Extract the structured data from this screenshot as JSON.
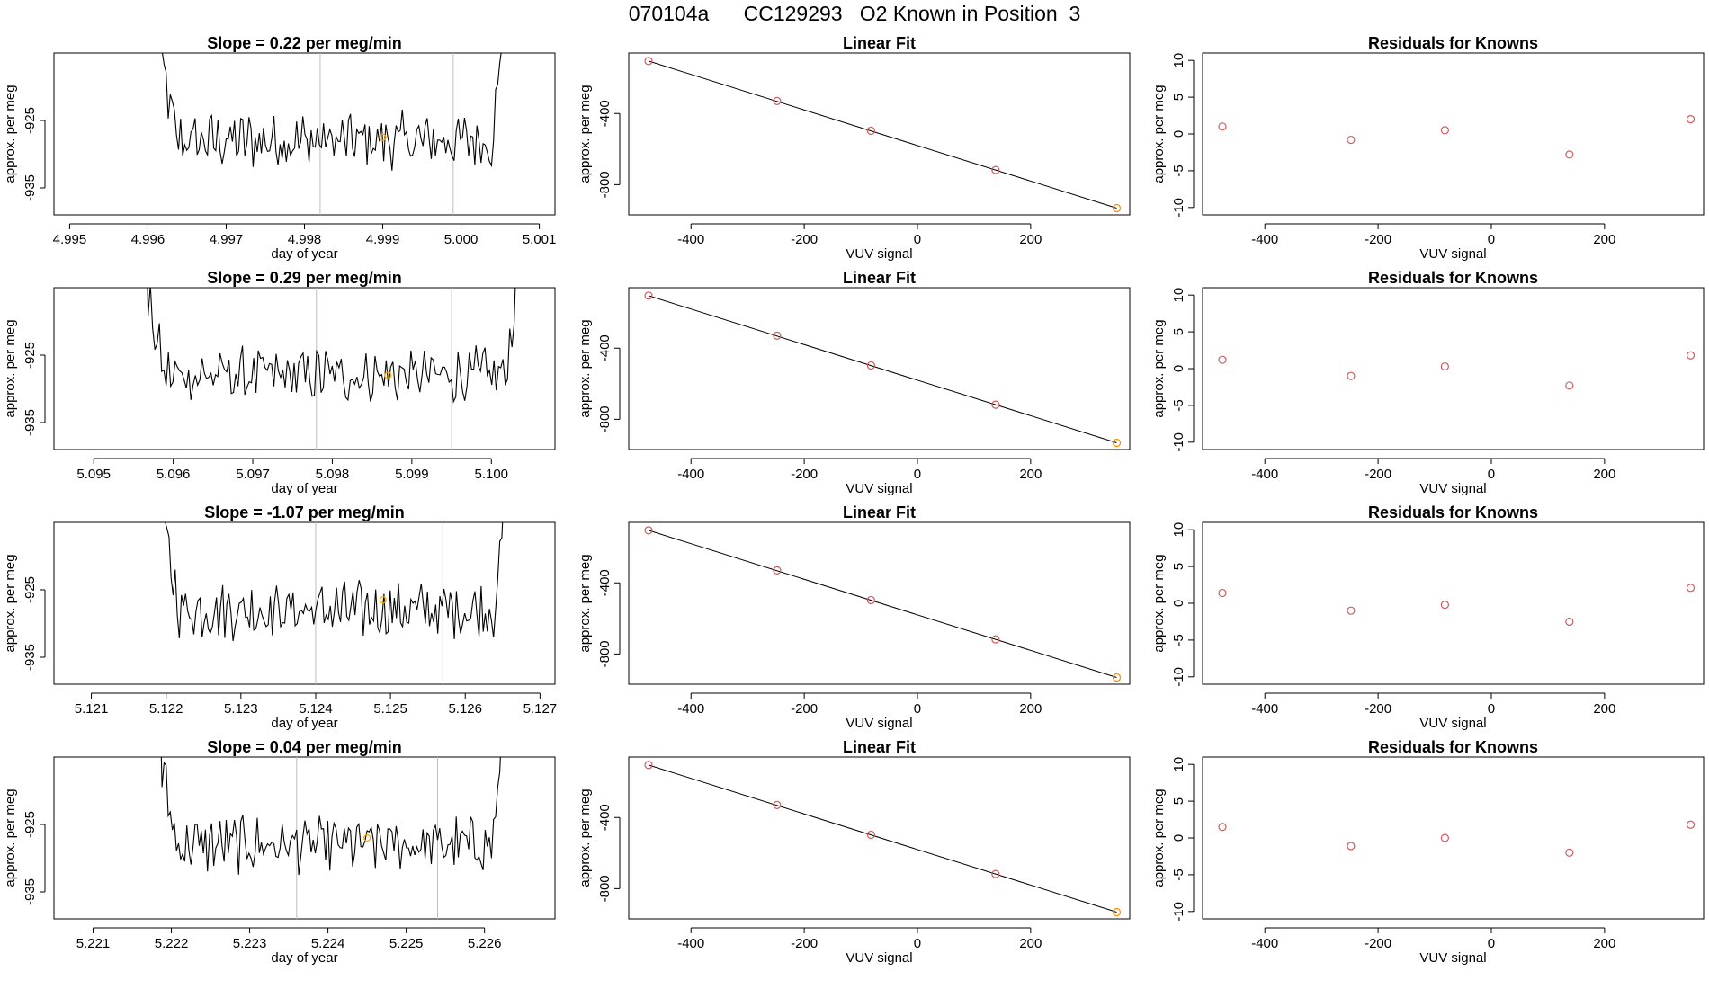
{
  "page_title": "070104a      CC129293   O2 Known in Position  3",
  "chart_data": [
    {
      "type": "line",
      "title": "Slope =  0.22  per meg/min",
      "xlabel": "day of year",
      "ylabel": "approx. per meg",
      "xlim": [
        4.9948,
        5.0012
      ],
      "ylim": [
        -939,
        -915
      ],
      "xticks": [
        4.995,
        4.996,
        4.997,
        4.998,
        4.999,
        5.0,
        5.001
      ],
      "xtick_labels": [
        "4.995",
        "4.996",
        "4.997",
        "4.998",
        "4.999",
        "5.000",
        "5.001"
      ],
      "yticks": [
        -925,
        -935
      ],
      "ytick_labels": [
        "-925",
        "-935"
      ],
      "vlines": [
        4.9982,
        4.9999
      ],
      "x_start": 4.9961,
      "x_end": 5.0006,
      "series_color": "#000000",
      "vline_color": "#bebebe",
      "marker": {
        "x": 4.999,
        "y": -927.5,
        "color": "#ffa500"
      }
    },
    {
      "type": "scatter",
      "title": "Linear Fit",
      "xlabel": "VUV signal",
      "ylabel": "approx. per meg",
      "xlim": [
        -510,
        375
      ],
      "ylim": [
        -970,
        -60
      ],
      "xticks": [
        -400,
        -200,
        0,
        200
      ],
      "xtick_labels": [
        "-400",
        "-200",
        "0",
        "200"
      ],
      "yticks": [
        -400,
        -800
      ],
      "ytick_labels": [
        "-400",
        "-800"
      ],
      "x": [
        -475,
        -248,
        -82,
        138,
        352
      ],
      "y": [
        -105,
        -330,
        -497,
        -718,
        -932
      ],
      "fit_line": {
        "x": [
          -475,
          352
        ],
        "y": [
          -105,
          -932
        ]
      },
      "point_color": "#cd5c5c",
      "highlight_point": {
        "index": 4,
        "color": "#ff8c00"
      },
      "line_color": "#000000"
    },
    {
      "type": "scatter",
      "title": "Residuals for Knowns",
      "xlabel": "VUV signal",
      "ylabel": "approx. per meg",
      "xlim": [
        -510,
        375
      ],
      "ylim": [
        -11,
        11
      ],
      "xticks": [
        -400,
        -200,
        0,
        200
      ],
      "xtick_labels": [
        "-400",
        "-200",
        "0",
        "200"
      ],
      "yticks": [
        10,
        5,
        0,
        -5,
        -10
      ],
      "ytick_labels": [
        "10",
        "5",
        "0",
        "-5",
        "-10"
      ],
      "x": [
        -475,
        -248,
        -82,
        138,
        352
      ],
      "y": [
        1.0,
        -0.8,
        0.5,
        -2.8,
        2.0
      ],
      "point_color": "#cd5c5c"
    },
    {
      "type": "line",
      "title": "Slope =  0.29  per meg/min",
      "xlabel": "day of year",
      "ylabel": "approx. per meg",
      "xlim": [
        5.0945,
        5.1008
      ],
      "ylim": [
        -939,
        -915
      ],
      "xticks": [
        5.095,
        5.096,
        5.097,
        5.098,
        5.099,
        5.1
      ],
      "xtick_labels": [
        "5.095",
        "5.096",
        "5.097",
        "5.098",
        "5.099",
        "5.100"
      ],
      "yticks": [
        -925,
        -935
      ],
      "ytick_labels": [
        "-925",
        "-935"
      ],
      "vlines": [
        5.0978,
        5.0995
      ],
      "x_start": 5.0956,
      "x_end": 5.1004,
      "series_color": "#000000",
      "vline_color": "#bebebe",
      "marker": {
        "x": 5.0987,
        "y": -928.0,
        "color": "#ffa500"
      }
    },
    {
      "type": "scatter",
      "title": "Linear Fit",
      "xlabel": "VUV signal",
      "ylabel": "approx. per meg",
      "xlim": [
        -510,
        375
      ],
      "ylim": [
        -970,
        -60
      ],
      "xticks": [
        -400,
        -200,
        0,
        200
      ],
      "xtick_labels": [
        "-400",
        "-200",
        "0",
        "200"
      ],
      "yticks": [
        -400,
        -800
      ],
      "ytick_labels": [
        "-400",
        "-800"
      ],
      "x": [
        -475,
        -248,
        -82,
        138,
        352
      ],
      "y": [
        -105,
        -330,
        -497,
        -718,
        -932
      ],
      "fit_line": {
        "x": [
          -475,
          352
        ],
        "y": [
          -105,
          -932
        ]
      },
      "point_color": "#cd5c5c",
      "highlight_point": {
        "index": 4,
        "color": "#ff8c00"
      },
      "line_color": "#000000"
    },
    {
      "type": "scatter",
      "title": "Residuals for Knowns",
      "xlabel": "VUV signal",
      "ylabel": "approx. per meg",
      "xlim": [
        -510,
        375
      ],
      "ylim": [
        -11,
        11
      ],
      "xticks": [
        -400,
        -200,
        0,
        200
      ],
      "xtick_labels": [
        "-400",
        "-200",
        "0",
        "200"
      ],
      "yticks": [
        10,
        5,
        0,
        -5,
        -10
      ],
      "ytick_labels": [
        "10",
        "5",
        "0",
        "-5",
        "-10"
      ],
      "x": [
        -475,
        -248,
        -82,
        138,
        352
      ],
      "y": [
        1.2,
        -1.0,
        0.3,
        -2.3,
        1.8
      ],
      "point_color": "#cd5c5c"
    },
    {
      "type": "line",
      "title": "Slope =  -1.07  per meg/min",
      "xlabel": "day of year",
      "ylabel": "approx. per meg",
      "xlim": [
        5.1205,
        5.1272
      ],
      "ylim": [
        -939,
        -915
      ],
      "xticks": [
        5.121,
        5.122,
        5.123,
        5.124,
        5.125,
        5.126,
        5.127
      ],
      "xtick_labels": [
        "5.121",
        "5.122",
        "5.123",
        "5.124",
        "5.125",
        "5.126",
        "5.127"
      ],
      "yticks": [
        -925,
        -935
      ],
      "ytick_labels": [
        "-925",
        "-935"
      ],
      "vlines": [
        5.124,
        5.1257
      ],
      "x_start": 5.1219,
      "x_end": 5.1266,
      "series_color": "#000000",
      "vline_color": "#bebebe",
      "marker": {
        "x": 5.1249,
        "y": -926.5,
        "color": "#ffa500"
      }
    },
    {
      "type": "scatter",
      "title": "Linear Fit",
      "xlabel": "VUV signal",
      "ylabel": "approx. per meg",
      "xlim": [
        -510,
        375
      ],
      "ylim": [
        -970,
        -60
      ],
      "xticks": [
        -400,
        -200,
        0,
        200
      ],
      "xtick_labels": [
        "-400",
        "-200",
        "0",
        "200"
      ],
      "yticks": [
        -400,
        -800
      ],
      "ytick_labels": [
        "-400",
        "-800"
      ],
      "x": [
        -475,
        -248,
        -82,
        138,
        352
      ],
      "y": [
        -105,
        -330,
        -497,
        -718,
        -932
      ],
      "fit_line": {
        "x": [
          -475,
          352
        ],
        "y": [
          -105,
          -932
        ]
      },
      "point_color": "#cd5c5c",
      "highlight_point": {
        "index": 4,
        "color": "#ff8c00"
      },
      "line_color": "#000000"
    },
    {
      "type": "scatter",
      "title": "Residuals for Knowns",
      "xlabel": "VUV signal",
      "ylabel": "approx. per meg",
      "xlim": [
        -510,
        375
      ],
      "ylim": [
        -11,
        11
      ],
      "xticks": [
        -400,
        -200,
        0,
        200
      ],
      "xtick_labels": [
        "-400",
        "-200",
        "0",
        "200"
      ],
      "yticks": [
        10,
        5,
        0,
        -5,
        -10
      ],
      "ytick_labels": [
        "10",
        "5",
        "0",
        "-5",
        "-10"
      ],
      "x": [
        -475,
        -248,
        -82,
        138,
        352
      ],
      "y": [
        1.4,
        -1.0,
        -0.2,
        -2.5,
        2.1
      ],
      "point_color": "#cd5c5c"
    },
    {
      "type": "line",
      "title": "Slope =  0.04  per meg/min",
      "xlabel": "day of year",
      "ylabel": "approx. per meg",
      "xlim": [
        5.2205,
        5.2269
      ],
      "ylim": [
        -939,
        -915
      ],
      "xticks": [
        5.221,
        5.222,
        5.223,
        5.224,
        5.225,
        5.226
      ],
      "xtick_labels": [
        "5.221",
        "5.222",
        "5.223",
        "5.224",
        "5.225",
        "5.226"
      ],
      "yticks": [
        -925,
        -935
      ],
      "ytick_labels": [
        "-925",
        "-935"
      ],
      "vlines": [
        5.2236,
        5.2254
      ],
      "x_start": 5.2218,
      "x_end": 5.2263,
      "series_color": "#000000",
      "vline_color": "#bebebe",
      "marker": {
        "x": 5.2245,
        "y": -927.0,
        "color": "#ffa500"
      }
    },
    {
      "type": "scatter",
      "title": "Linear Fit",
      "xlabel": "VUV signal",
      "ylabel": "approx. per meg",
      "xlim": [
        -510,
        375
      ],
      "ylim": [
        -970,
        -60
      ],
      "xticks": [
        -400,
        -200,
        0,
        200
      ],
      "xtick_labels": [
        "-400",
        "-200",
        "0",
        "200"
      ],
      "yticks": [
        -400,
        -800
      ],
      "ytick_labels": [
        "-400",
        "-800"
      ],
      "x": [
        -475,
        -248,
        -82,
        138,
        352
      ],
      "y": [
        -105,
        -330,
        -497,
        -718,
        -932
      ],
      "fit_line": {
        "x": [
          -475,
          352
        ],
        "y": [
          -105,
          -932
        ]
      },
      "point_color": "#cd5c5c",
      "highlight_point": {
        "index": 4,
        "color": "#ff8c00"
      },
      "line_color": "#000000"
    },
    {
      "type": "scatter",
      "title": "Residuals for Knowns",
      "xlabel": "VUV signal",
      "ylabel": "approx. per meg",
      "xlim": [
        -510,
        375
      ],
      "ylim": [
        -11,
        11
      ],
      "xticks": [
        -400,
        -200,
        0,
        200
      ],
      "xtick_labels": [
        "-400",
        "-200",
        "0",
        "200"
      ],
      "yticks": [
        10,
        5,
        0,
        -5,
        -10
      ],
      "ytick_labels": [
        "10",
        "5",
        "0",
        "-5",
        "-10"
      ],
      "x": [
        -475,
        -248,
        -82,
        138,
        352
      ],
      "y": [
        1.5,
        -1.1,
        0.0,
        -2.0,
        1.8
      ],
      "point_color": "#cd5c5c"
    }
  ]
}
